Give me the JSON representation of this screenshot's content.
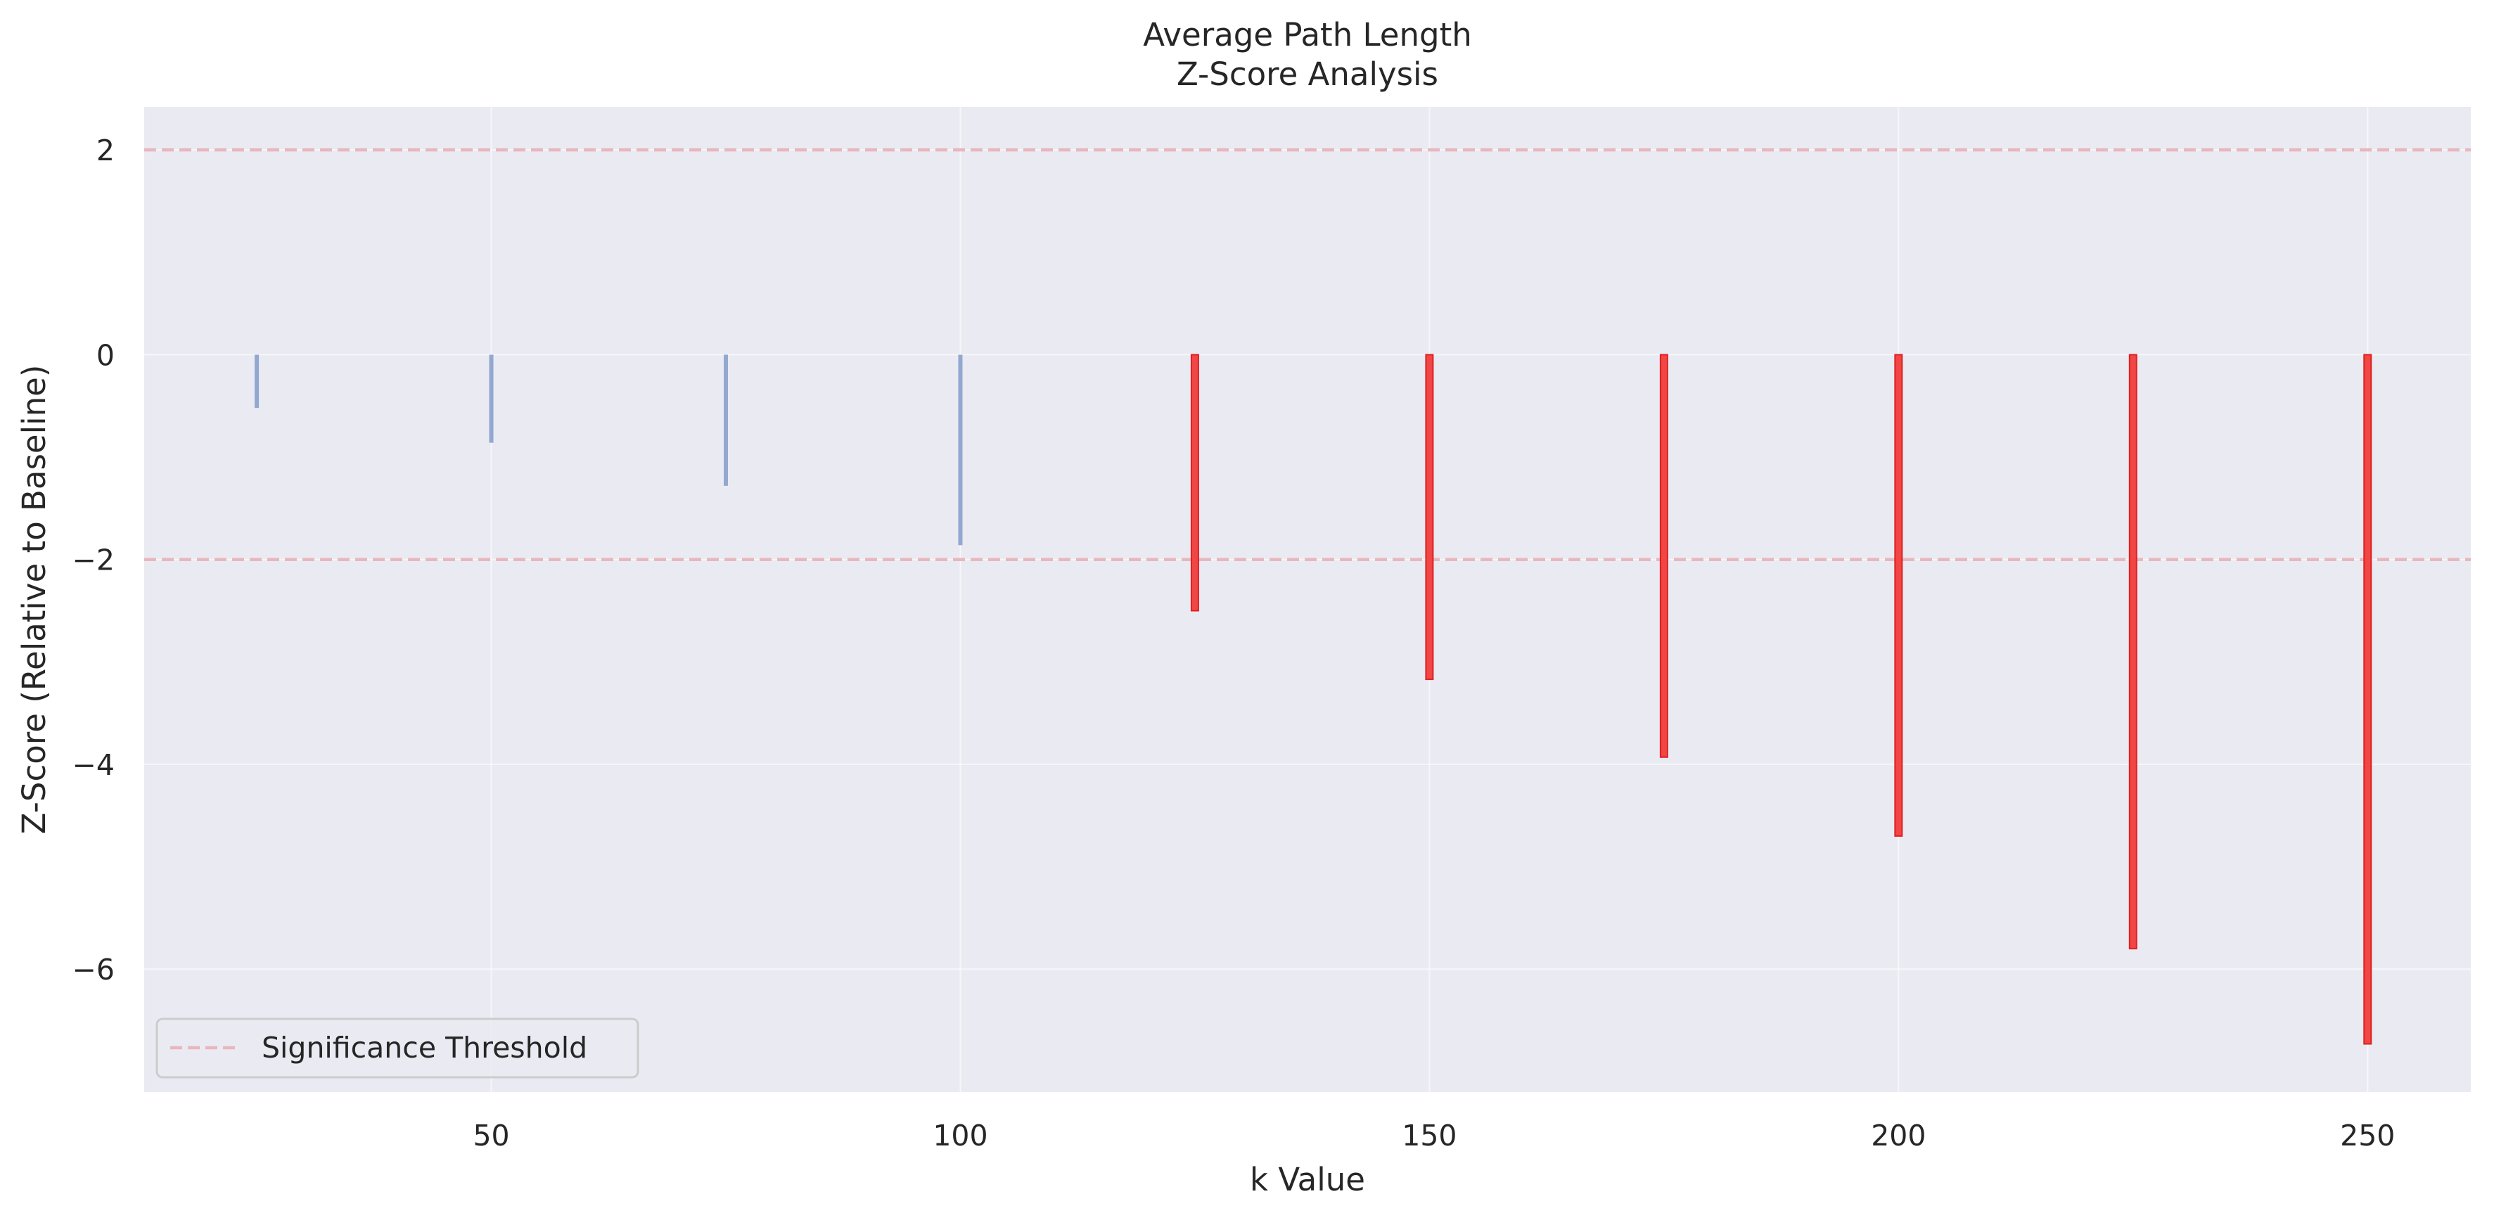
{
  "chart_data": {
    "type": "bar",
    "title": "Average Path Length",
    "subtitle": "Z-Score Analysis",
    "xlabel": "k Value",
    "ylabel": "Z-Score (Relative to Baseline)",
    "xlim": [
      13,
      261
    ],
    "ylim": [
      -7.2,
      2.42
    ],
    "x_ticks": [
      50,
      100,
      150,
      200,
      250
    ],
    "y_ticks": [
      -6,
      -4,
      -2,
      0,
      2
    ],
    "y_tick_labels": [
      "−6",
      "−4",
      "−2",
      "0",
      "2"
    ],
    "grid": true,
    "background": "#eaeaf2",
    "bars": {
      "x": [
        25,
        50,
        75,
        100,
        125,
        150,
        175,
        200,
        225,
        250
      ],
      "values": [
        -0.52,
        -0.86,
        -1.28,
        -1.86,
        -2.5,
        -3.17,
        -3.93,
        -4.7,
        -5.8,
        -6.73
      ],
      "significant": [
        false,
        false,
        false,
        false,
        true,
        true,
        true,
        true,
        true,
        true
      ],
      "color_normal": "#92a8d1",
      "color_significant": "#f04646"
    },
    "thresholds": {
      "values": [
        2,
        -2
      ],
      "color": "#e8b7bd",
      "style": "dashed"
    },
    "legend": {
      "location": "lower-left",
      "entries": [
        {
          "label": "Significance Threshold"
        }
      ]
    }
  }
}
